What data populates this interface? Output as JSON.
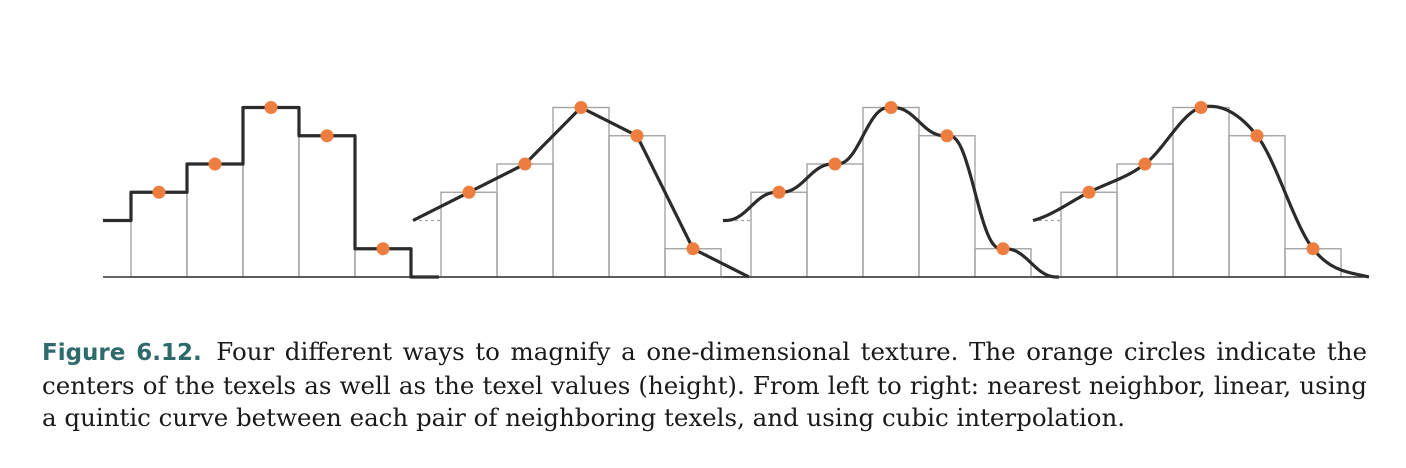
{
  "figure": {
    "texel_values": [
      3,
      4,
      6,
      5,
      1
    ],
    "edge_values": [
      2,
      0
    ],
    "panels": [
      {
        "method": "nearest-neighbor"
      },
      {
        "method": "linear"
      },
      {
        "method": "quintic"
      },
      {
        "method": "cubic"
      }
    ],
    "colors": {
      "curve": "#2b2b2b",
      "texel_circle": "#ee7e3f",
      "bin_outline": "#a5a5a5",
      "baseline": "#333333",
      "dashed_edge": "#a5a5a5"
    }
  },
  "caption": {
    "label": "Figure 6.12.",
    "text": "Four different ways to magnify a one-dimensional texture. The orange circles indicate the centers of the texels as well as the texel values (height). From left to right: nearest neighbor, linear, using a quintic curve between each pair of neighboring texels, and using cubic interpolation."
  }
}
